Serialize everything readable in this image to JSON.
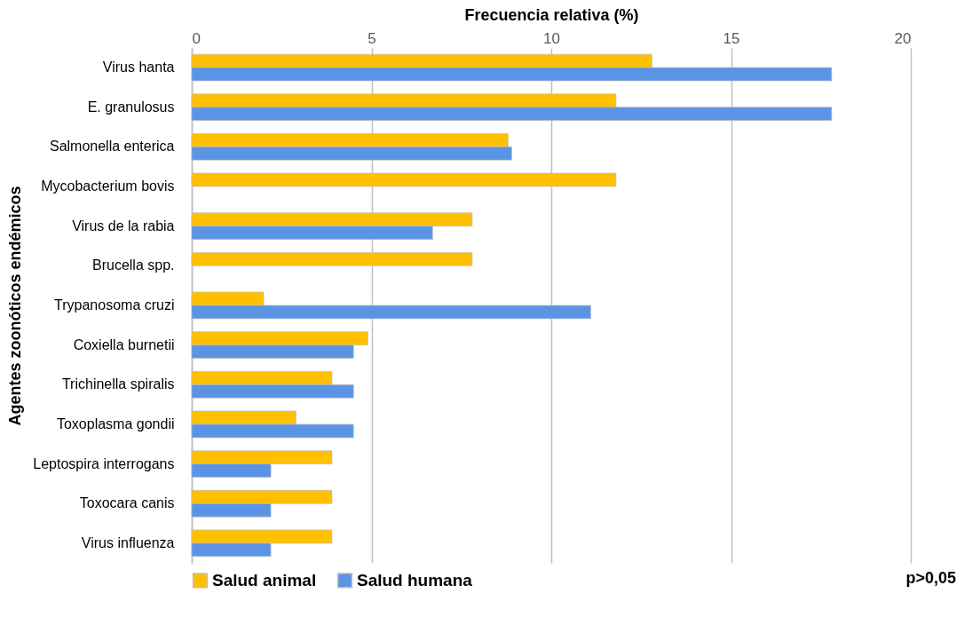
{
  "chart_data": {
    "type": "bar",
    "orientation": "horizontal",
    "xlabel": "Frecuencia relativa (%)",
    "ylabel": "Agentes zoonóticos endémicos",
    "categories": [
      "Virus hanta",
      "E. granulosus",
      "Salmonella enterica",
      "Mycobacterium bovis",
      "Virus de la rabia",
      "Brucella spp.",
      "Trypanosoma cruzi",
      "Coxiella burnetii",
      "Trichinella spiralis",
      "Toxoplasma gondii",
      "Leptospira interrogans",
      "Toxocara canis",
      "Virus influenza"
    ],
    "series": [
      {
        "name": "Salud animal",
        "color": "#ffc000",
        "values": [
          12.8,
          11.8,
          8.8,
          11.8,
          7.8,
          7.8,
          2.0,
          4.9,
          3.9,
          2.9,
          3.9,
          3.9,
          3.9
        ]
      },
      {
        "name": "Salud humana",
        "color": "#5b93e5",
        "values": [
          17.8,
          17.8,
          8.9,
          null,
          6.7,
          null,
          11.1,
          4.5,
          4.5,
          4.5,
          2.2,
          2.2,
          2.2
        ]
      }
    ],
    "xlim": [
      0,
      20
    ],
    "xticks": [
      0,
      5,
      10,
      15,
      20
    ],
    "grid": "x",
    "legend": "bottom",
    "annotations": [
      "p>0,05"
    ]
  }
}
